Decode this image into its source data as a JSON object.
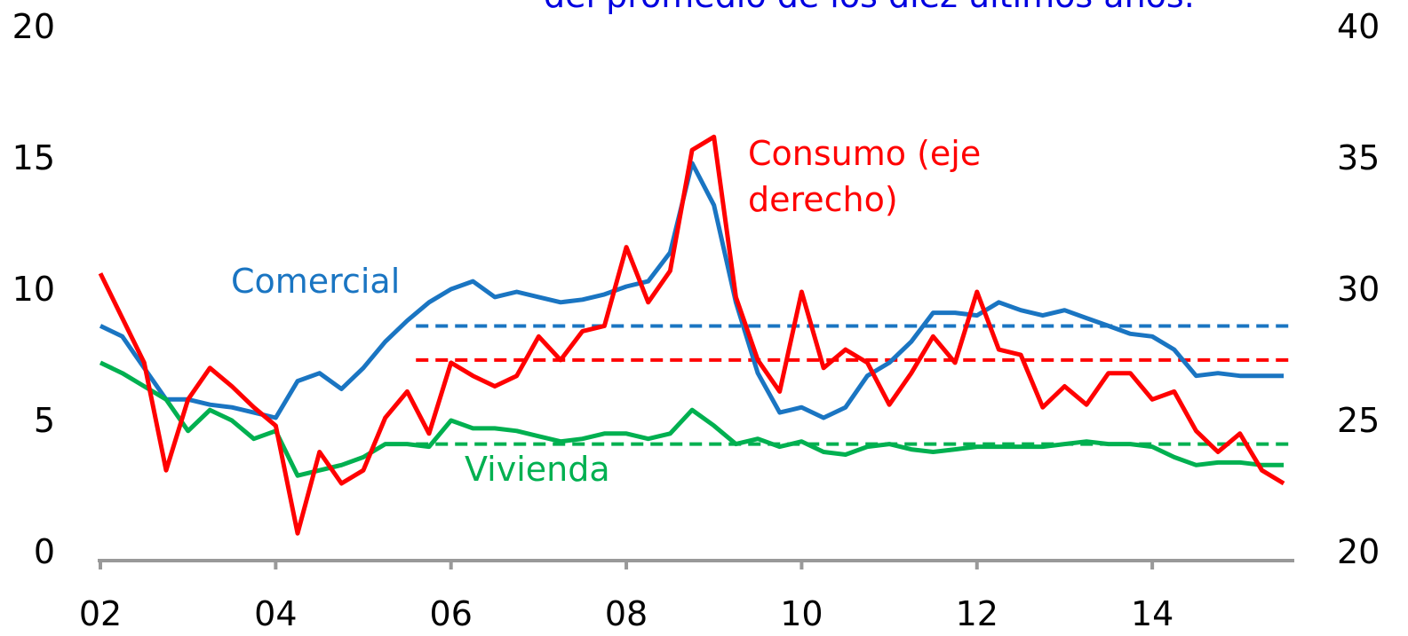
{
  "chart_data": {
    "type": "line",
    "title": "del promedio de los diez últimos años.",
    "x": [
      2002,
      2002.25,
      2002.5,
      2002.75,
      2003,
      2003.25,
      2003.5,
      2003.75,
      2004,
      2004.25,
      2004.5,
      2004.75,
      2005,
      2005.25,
      2005.5,
      2005.75,
      2006,
      2006.25,
      2006.5,
      2006.75,
      2007,
      2007.25,
      2007.5,
      2007.75,
      2008,
      2008.25,
      2008.5,
      2008.75,
      2009,
      2009.25,
      2009.5,
      2009.75,
      2010,
      2010.25,
      2010.5,
      2010.75,
      2011,
      2011.25,
      2011.5,
      2011.75,
      2012,
      2012.25,
      2012.5,
      2012.75,
      2013,
      2013.25,
      2013.5,
      2013.75,
      2014,
      2014.25,
      2014.5,
      2014.75,
      2015,
      2015.25,
      2015.5
    ],
    "series": [
      {
        "name": "Comercial",
        "color": "#1a75c2",
        "axis": "y",
        "values": [
          8.6,
          8.2,
          7.0,
          5.8,
          5.8,
          5.6,
          5.5,
          5.3,
          5.1,
          6.5,
          6.8,
          6.2,
          7.0,
          8.0,
          8.8,
          9.5,
          10.0,
          10.3,
          9.7,
          9.9,
          9.7,
          9.5,
          9.6,
          9.8,
          10.1,
          10.3,
          11.4,
          14.8,
          13.2,
          9.5,
          6.8,
          5.3,
          5.5,
          5.1,
          5.5,
          6.7,
          7.2,
          8.0,
          9.1,
          9.1,
          9.0,
          9.5,
          9.2,
          9.0,
          9.2,
          8.9,
          8.6,
          8.3,
          8.2,
          7.7,
          6.7,
          6.8,
          6.7,
          6.7,
          6.7
        ]
      },
      {
        "name": "Vivienda",
        "color": "#00b050",
        "axis": "y",
        "values": [
          7.2,
          6.8,
          6.3,
          5.8,
          4.6,
          5.4,
          5.0,
          4.3,
          4.6,
          2.9,
          3.1,
          3.3,
          3.6,
          4.1,
          4.1,
          4.0,
          5.0,
          4.7,
          4.7,
          4.6,
          4.4,
          4.2,
          4.3,
          4.5,
          4.5,
          4.3,
          4.5,
          5.4,
          4.8,
          4.1,
          4.3,
          4.0,
          4.2,
          3.8,
          3.7,
          4.0,
          4.1,
          3.9,
          3.8,
          3.9,
          4.0,
          4.0,
          4.0,
          4.0,
          4.1,
          4.2,
          4.1,
          4.1,
          4.0,
          3.6,
          3.3,
          3.4,
          3.4,
          3.3,
          3.3
        ]
      },
      {
        "name": "Consumo (eje derecho)",
        "color": "#ff0000",
        "axis": "y2",
        "values": [
          30.6,
          28.9,
          27.2,
          23.1,
          25.8,
          27.0,
          26.3,
          25.5,
          24.8,
          20.7,
          23.8,
          22.6,
          23.1,
          25.1,
          26.1,
          24.5,
          27.2,
          26.7,
          26.3,
          26.7,
          28.2,
          27.3,
          28.4,
          28.6,
          31.6,
          29.5,
          30.7,
          35.3,
          35.8,
          29.7,
          27.3,
          26.1,
          29.9,
          27.0,
          27.7,
          27.2,
          25.6,
          26.8,
          28.2,
          27.2,
          29.9,
          27.7,
          27.5,
          25.5,
          26.3,
          25.6,
          26.8,
          26.8,
          25.8,
          26.1,
          24.6,
          23.8,
          24.5,
          23.1,
          22.6
        ]
      }
    ],
    "reference_lines": [
      {
        "axis": "y",
        "value": 8.6,
        "color": "#1a75c2",
        "x_start": 2005.6
      },
      {
        "axis": "y2",
        "value": 27.3,
        "color": "#ff0000",
        "x_start": 2005.6
      },
      {
        "axis": "y",
        "value": 4.1,
        "color": "#00b050",
        "x_start": 2005.6
      }
    ],
    "xlim": [
      2002,
      2015.6
    ],
    "xticks": [
      {
        "value": 2002,
        "label": "02"
      },
      {
        "value": 2004,
        "label": "04"
      },
      {
        "value": 2006,
        "label": "06"
      },
      {
        "value": 2008,
        "label": "08"
      },
      {
        "value": 2010,
        "label": "10"
      },
      {
        "value": 2012,
        "label": "12"
      },
      {
        "value": 2014,
        "label": "14"
      }
    ],
    "ylim": [
      0,
      20
    ],
    "yticks": [
      0,
      5,
      10,
      15,
      20
    ],
    "y2lim": [
      20,
      40
    ],
    "y2ticks": [
      20,
      25,
      30,
      35,
      40
    ],
    "grid": false
  }
}
